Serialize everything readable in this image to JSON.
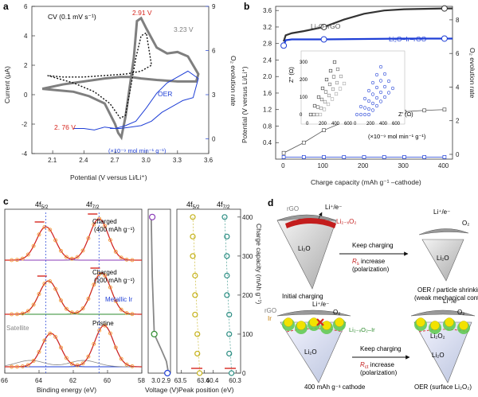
{
  "colors": {
    "grey_cv": "#7f7f7f",
    "black": "#1a1a1a",
    "red": "#d7261e",
    "blue": "#1f3fd6",
    "orange": "#f39a36",
    "green": "#2e8b2e",
    "purple": "#8a3bb8",
    "yellow_marker": "#c5b21b",
    "teal_marker": "#2e8f84",
    "ir_yellow": "#f2e200",
    "ir_green": "#5cc94b"
  },
  "panel_a": {
    "letter": "a",
    "condition": "CV (0.1 mV s⁻¹)",
    "peak_red_high": "2.91 V",
    "peak_grey": "3.23 V",
    "peak_red_low": "2. 76 V",
    "oer_label": "OER",
    "oer_units": "(×10⁻⁹ mol min⁻¹ g⁻¹)",
    "ylabel_left": "Current (μA)",
    "ylabel_right": "O₂ evolution rate",
    "xlabel": "Potential (V versus Li/Li⁺)"
  },
  "panel_b": {
    "letter": "b",
    "label_rgo": "Li₂O–rGO",
    "label_ir": "Li₂O–Ir–rGO",
    "inset_ylabel": "Z″ (Ω)",
    "inset_xlabel": "Z′ (Ω)",
    "inset_ticks_x": [
      "0",
      "200",
      "400",
      "600"
    ],
    "inset_ticks_y": [
      "0",
      "100",
      "200",
      "300"
    ],
    "oer_units": "(×10⁻⁹ mol min⁻¹ g⁻¹)",
    "ylabel_left": "Potential (V versus Li/Li⁺)",
    "ylabel_right": "O₂ evolution rate",
    "xlabel": "Charge capacity (mAh g⁻¹ –cathode)"
  },
  "panel_c": {
    "letter": "c",
    "peak_5_2": "4f",
    "peak_5_2_sub": "5/2",
    "peak_7_2": "4f",
    "peak_7_2_sub": "7/2",
    "label_charged400": "Charged",
    "label_charged400_b": "(400 mAh g⁻¹)",
    "label_charged100": "Charged",
    "label_charged100_b": "(100 mAh g⁻¹)",
    "label_metallic": "Metallic Ir",
    "label_satellite": "Satellite",
    "label_pristine": "Pristine",
    "xlabel_be": "Binding energy (eV)",
    "xlabel_voltage": "Voltage (V)",
    "xlabel_peak": "Peak position (eV)",
    "ylabel_right": "Charge capacity (mAh g⁻¹)",
    "be_ticks": [
      "66",
      "64",
      "62",
      "60",
      "58"
    ],
    "voltage_ticks": [
      "3.0",
      "2.9"
    ],
    "peak_ticks": [
      "63.5",
      "63.4",
      "60.4",
      "60.3"
    ],
    "cap_ticks": [
      "0",
      "100",
      "200",
      "300",
      "400"
    ]
  },
  "panel_d": {
    "letter": "d",
    "label_rgo": "rGO",
    "label_li_e": "Li⁺/e⁻",
    "label_o2": "O₂",
    "label_li2xo2": "Li₂₋ₓO₂",
    "label_li2o": "Li₂O",
    "keep_charging": "Keep charging",
    "rs_increase_a": "R",
    "rs_increase_sub": "s",
    "rs_increase_b": " increase",
    "polarization": "(polarization)",
    "caption_initial": "Initial charging",
    "caption_oer1": "OER / particle shrinking",
    "caption_oer1b": "(weak mechanical contact)",
    "label_ir": "Ir",
    "label_li2xo2ir": "Li₂₋ₓO₂–Ir",
    "rct_increase_a": "R",
    "rct_increase_sub": "ct",
    "rct_increase_b": " increase",
    "caption_400": "400 mAh g⁻¹ cathode",
    "caption_oer2": "OER (surface Li₂O₂)",
    "label_li2o2": "Li₂O₂"
  },
  "chart_data": [
    {
      "type": "line",
      "panel": "a",
      "xlim": [
        1.9,
        3.6
      ],
      "ylim": [
        -4,
        6
      ],
      "xticks": [
        2.1,
        2.4,
        2.7,
        3.0,
        3.3,
        3.6
      ],
      "yticks": [
        -4,
        -2,
        0,
        2,
        4,
        6
      ],
      "y2lim": [
        -1,
        9
      ],
      "y2ticks": [
        0,
        3,
        6,
        9
      ],
      "series": [
        {
          "name": "CV grey (solid)",
          "x": [
            2.0,
            2.15,
            2.3,
            2.45,
            2.6,
            2.7,
            2.73,
            2.76,
            2.8,
            2.88,
            2.91,
            2.95,
            3.0,
            3.1,
            3.2,
            3.3,
            3.4,
            3.5,
            3.48,
            3.3,
            3.1,
            2.95,
            2.85,
            2.75,
            2.6,
            2.4,
            2.2,
            2.0
          ],
          "y": [
            0.4,
            0.3,
            0.2,
            -0.1,
            -0.6,
            -2.0,
            -2.6,
            -2.9,
            -1.5,
            2.5,
            5.0,
            5.2,
            4.5,
            3.2,
            2.8,
            2.9,
            2.6,
            1.4,
            0.9,
            0.9,
            1.0,
            1.1,
            1.2,
            1.2,
            1.1,
            0.9,
            0.7,
            0.4
          ]
        },
        {
          "name": "CV dotted",
          "x": [
            2.05,
            2.3,
            2.5,
            2.65,
            2.75,
            2.8,
            2.85,
            2.9,
            2.95,
            3.0,
            3.05,
            2.95,
            2.8,
            2.6,
            2.4,
            2.2,
            2.05
          ],
          "y": [
            1.3,
            0.8,
            0.2,
            -0.6,
            -1.6,
            -1.4,
            0.5,
            2.5,
            4.0,
            4.2,
            2.0,
            1.6,
            1.4,
            1.3,
            1.2,
            1.2,
            1.3
          ]
        },
        {
          "name": "OER",
          "x": [
            2.3,
            2.4,
            2.5,
            2.6,
            2.7,
            2.8,
            2.9,
            3.0,
            3.1,
            3.2,
            3.3,
            3.4,
            3.5,
            3.45,
            3.35,
            3.25,
            3.15,
            3.05,
            2.95,
            2.85,
            2.75,
            2.65
          ],
          "y": [
            0.1,
            0.1,
            0.0,
            0.2,
            0.1,
            0.3,
            0.6,
            1.5,
            2.5,
            3.2,
            3.6,
            4.0,
            3.5,
            2.2,
            2.0,
            1.6,
            1.2,
            0.6,
            0.3,
            0.2,
            0.1,
            0.1
          ]
        }
      ]
    },
    {
      "type": "line",
      "panel": "b",
      "xlim": [
        -20,
        420
      ],
      "ylim": [
        0,
        3.7
      ],
      "xticks": [
        0,
        100,
        200,
        300,
        400
      ],
      "yticks": [
        0.4,
        0.8,
        1.2,
        1.6,
        2.0,
        2.4,
        2.8,
        3.2,
        3.6
      ],
      "y2ticks": [
        0,
        2,
        4,
        6,
        8
      ],
      "series": [
        {
          "name": "Li₂O–rGO potential",
          "x": [
            0,
            5,
            20,
            50,
            100,
            150,
            200,
            250,
            300,
            350,
            400,
            420
          ],
          "y": [
            2.85,
            3.0,
            3.05,
            3.1,
            3.2,
            3.38,
            3.52,
            3.6,
            3.63,
            3.64,
            3.65,
            3.65
          ]
        },
        {
          "name": "Li₂O–Ir–rGO potential",
          "x": [
            0,
            5,
            20,
            50,
            100,
            200,
            300,
            400,
            420
          ],
          "y": [
            2.75,
            2.88,
            2.9,
            2.9,
            2.9,
            2.91,
            2.92,
            2.92,
            2.92
          ]
        },
        {
          "name": "Li₂O–rGO OER",
          "x": [
            0,
            50,
            100,
            150,
            200,
            250,
            300,
            350,
            400
          ],
          "y": [
            0.15,
            0.4,
            0.7,
            0.9,
            1.05,
            1.1,
            1.15,
            1.18,
            1.2
          ]
        },
        {
          "name": "Li₂O–Ir–rGO OER",
          "x": [
            0,
            50,
            100,
            150,
            200,
            250,
            300,
            350,
            400
          ],
          "y": [
            0.05,
            0.05,
            0.05,
            0.05,
            0.05,
            0.05,
            0.05,
            0.05,
            0.05
          ]
        }
      ]
    },
    {
      "type": "line",
      "panel": "c",
      "xlim": [
        66,
        58
      ],
      "xticks": [
        66,
        64,
        62,
        60,
        58
      ],
      "series_peaks_eV": {
        "4f5/2": 63.5,
        "4f7/2": 60.4
      },
      "voltage_curve": {
        "x_voltage": [
          2.88,
          2.9,
          2.95,
          3.02,
          3.04,
          3.05
        ],
        "y_capacity": [
          0,
          30,
          60,
          100,
          250,
          400
        ]
      },
      "peak_positions": {
        "4f5/2": {
          "capacity": [
            0,
            50,
            100,
            150,
            200,
            250,
            300,
            350,
            400
          ],
          "eV": [
            63.42,
            63.43,
            63.43,
            63.44,
            63.44,
            63.44,
            63.45,
            63.45,
            63.45
          ]
        },
        "4f7/2": {
          "capacity": [
            0,
            50,
            100,
            150,
            200,
            250,
            300,
            350,
            400
          ],
          "eV": [
            60.32,
            60.33,
            60.33,
            60.33,
            60.34,
            60.34,
            60.34,
            60.34,
            60.35
          ]
        }
      },
      "cap_ylim": [
        0,
        420
      ]
    }
  ]
}
